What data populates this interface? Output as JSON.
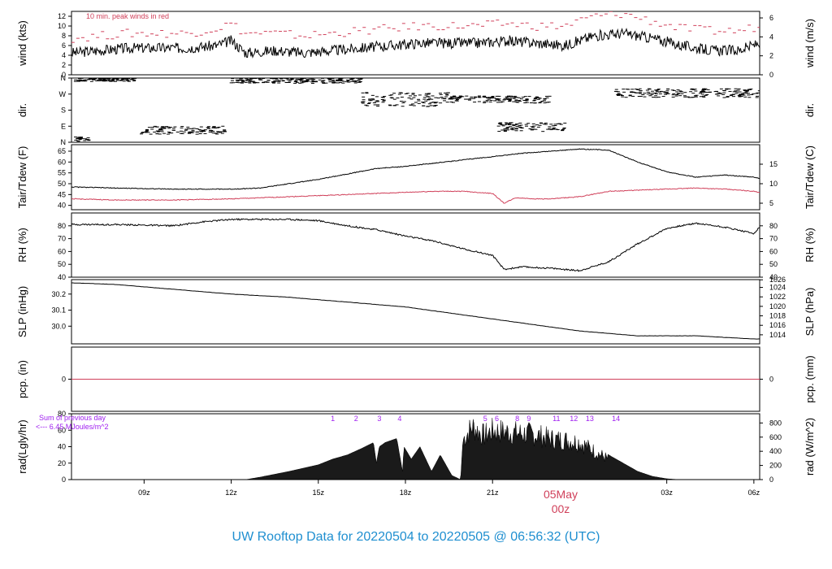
{
  "title": "UW Rooftop Data for 20220504  to  20220505 @ 06:56:32  (UTC)",
  "date_marker": {
    "label": "05May",
    "sub": "00z"
  },
  "time_axis": {
    "range_hours": [
      6.5,
      30.2
    ],
    "ticks": [
      {
        "h": 9,
        "label": "09z"
      },
      {
        "h": 12,
        "label": "12z"
      },
      {
        "h": 15,
        "label": "15z"
      },
      {
        "h": 18,
        "label": "18z"
      },
      {
        "h": 21,
        "label": "21z"
      },
      {
        "h": 27,
        "label": "03z"
      },
      {
        "h": 30,
        "label": "06z"
      }
    ]
  },
  "colors": {
    "trace": "#000000",
    "red": "#d0405a",
    "purple": "#a020f0",
    "title": "#1f8fd0"
  },
  "chart_data": [
    {
      "id": "wind",
      "type": "line",
      "ylabel": "wind (kts)",
      "ylabel_right": "wind (m/s)",
      "ylim": [
        0,
        13
      ],
      "left_ticks": [
        "0",
        "2",
        "4",
        "6",
        "8",
        "10",
        "12"
      ],
      "right_ticks": [
        {
          "v": 0,
          "label": "0"
        },
        {
          "v": 3.888,
          "label": "2"
        },
        {
          "v": 7.776,
          "label": "4"
        },
        {
          "v": 11.66,
          "label": "6"
        }
      ],
      "annotation": "10 min. peak winds in red",
      "series": [
        {
          "color": "black",
          "x": [
            6.5,
            7.5,
            8.5,
            9.5,
            10.5,
            11.5,
            12.0,
            12.5,
            13.5,
            14.5,
            15.5,
            16.5,
            17.5,
            18.5,
            19.5,
            20.5,
            21.5,
            22.5,
            23.5,
            24.5,
            25.5,
            26.5,
            27.5,
            28.5,
            29.5,
            30.2
          ],
          "y": [
            4.5,
            5.0,
            5.5,
            5.5,
            5.5,
            6.0,
            7.0,
            4.5,
            5.0,
            4.5,
            5.0,
            5.5,
            6.0,
            6.5,
            6.5,
            6.5,
            7.0,
            6.5,
            6.0,
            8.0,
            8.5,
            7.5,
            6.0,
            5.0,
            5.0,
            6.5
          ]
        },
        {
          "color": "red",
          "style": "dashes",
          "x": [
            6.5,
            7.5,
            8.5,
            9.5,
            10.5,
            11.5,
            12.0,
            12.5,
            13.5,
            14.5,
            15.5,
            16.5,
            17.5,
            18.5,
            19.5,
            20.5,
            21.5,
            22.5,
            23.5,
            24.5,
            25.5,
            26.5,
            27.5,
            28.5,
            29.5,
            30.2
          ],
          "y": [
            7.5,
            8.0,
            8.5,
            8.5,
            8.5,
            9.5,
            10.5,
            8.5,
            8.5,
            8.0,
            8.5,
            9.0,
            9.5,
            10.0,
            10.0,
            10.0,
            10.5,
            10.0,
            10.0,
            12.0,
            12.5,
            11.0,
            9.5,
            9.0,
            9.0,
            10.0
          ]
        }
      ]
    },
    {
      "id": "dir",
      "type": "scatter",
      "ylabel": "dir.",
      "ylabel_right": "dir.",
      "ylim": [
        0,
        360
      ],
      "left_ticks": [
        {
          "v": 0,
          "label": "N"
        },
        {
          "v": 90,
          "label": "E"
        },
        {
          "v": 180,
          "label": "S"
        },
        {
          "v": 270,
          "label": "W"
        },
        {
          "v": 360,
          "label": "N"
        }
      ],
      "clusters": [
        {
          "x": [
            6.6,
            8.7
          ],
          "y": [
            340,
            360
          ]
        },
        {
          "x": [
            6.6,
            7.2
          ],
          "y": [
            5,
            30
          ]
        },
        {
          "x": [
            8.9,
            11.8
          ],
          "y": [
            45,
            90
          ]
        },
        {
          "x": [
            12.0,
            16.5
          ],
          "y": [
            330,
            360
          ]
        },
        {
          "x": [
            16.5,
            19.5
          ],
          "y": [
            200,
            280
          ]
        },
        {
          "x": [
            19.5,
            23.0
          ],
          "y": [
            220,
            260
          ]
        },
        {
          "x": [
            21.2,
            23.5
          ],
          "y": [
            60,
            110
          ]
        },
        {
          "x": [
            25.2,
            30.2
          ],
          "y": [
            250,
            300
          ]
        }
      ]
    },
    {
      "id": "temp",
      "type": "line",
      "ylabel": "Tair/Tdew (F)",
      "ylabel_right": "Tair/Tdew (C)",
      "ylim": [
        38,
        68
      ],
      "left_ticks": [
        "40",
        "45",
        "50",
        "55",
        "60",
        "65"
      ],
      "right_ticks": [
        {
          "v": 41,
          "label": "5"
        },
        {
          "v": 50,
          "label": "10"
        },
        {
          "v": 59,
          "label": "15"
        }
      ],
      "series": [
        {
          "name": "Tair",
          "color": "black",
          "x": [
            6.5,
            8,
            10,
            12,
            13,
            14,
            15,
            16,
            17,
            18,
            19,
            20,
            21,
            22,
            23,
            24,
            25,
            26,
            27,
            28,
            29,
            30,
            30.2
          ],
          "y": [
            48.5,
            48.0,
            47.5,
            47.5,
            48.0,
            50.0,
            52.0,
            54.5,
            57.0,
            58.0,
            59.5,
            61.0,
            62.5,
            64.0,
            65.0,
            66.0,
            65.5,
            60.0,
            55.5,
            53.0,
            54.0,
            53.0,
            52.5
          ]
        },
        {
          "name": "Tdew",
          "color": "red",
          "x": [
            6.5,
            8,
            10,
            12,
            14,
            16,
            18,
            19,
            20,
            21,
            21.4,
            21.8,
            22.5,
            23,
            24,
            25,
            26,
            27,
            28,
            29,
            30,
            30.2
          ],
          "y": [
            43.0,
            42.5,
            42.5,
            43.0,
            44.0,
            45.0,
            46.0,
            46.5,
            46.5,
            45.5,
            41.0,
            43.5,
            43.0,
            43.0,
            44.0,
            46.5,
            47.0,
            47.5,
            48.0,
            47.5,
            46.5,
            46.0
          ]
        }
      ]
    },
    {
      "id": "rh",
      "type": "line",
      "ylabel": "RH (%)",
      "ylabel_right": "RH (%)",
      "ylim": [
        40,
        90
      ],
      "left_ticks": [
        "40",
        "50",
        "60",
        "70",
        "80"
      ],
      "right_ticks": [
        {
          "v": 40,
          "label": "40"
        },
        {
          "v": 50,
          "label": "50"
        },
        {
          "v": 60,
          "label": "60"
        },
        {
          "v": 70,
          "label": "70"
        },
        {
          "v": 80,
          "label": "80"
        }
      ],
      "series": [
        {
          "color": "black",
          "x": [
            6.5,
            8,
            10,
            11,
            12,
            13,
            14,
            15,
            16,
            17,
            18,
            19,
            20,
            21,
            21.4,
            22,
            23,
            24,
            25,
            26,
            27,
            28,
            29,
            30,
            30.2
          ],
          "y": [
            81,
            81,
            80,
            83,
            85,
            85,
            85,
            84,
            80,
            77,
            72,
            68,
            62,
            57,
            46,
            48,
            47,
            45,
            52,
            66,
            78,
            82,
            79,
            74,
            79
          ]
        }
      ]
    },
    {
      "id": "slp",
      "type": "line",
      "ylabel": "SLP (inHg)",
      "ylabel_right": "SLP (hPa)",
      "ylim": [
        29.89,
        30.29
      ],
      "left_ticks": [
        "30.0",
        "30.1",
        "30.2"
      ],
      "right_ticks": [
        {
          "v": 29.9463,
          "label": "1014"
        },
        {
          "v": 30.0054,
          "label": "1016"
        },
        {
          "v": 30.0644,
          "label": "1018"
        },
        {
          "v": 30.1235,
          "label": "1020"
        },
        {
          "v": 30.1826,
          "label": "1022"
        },
        {
          "v": 30.2416,
          "label": "1024"
        },
        {
          "v": 30.2888,
          "label": "1026"
        }
      ],
      "series": [
        {
          "color": "black",
          "x": [
            6.5,
            8,
            10,
            12,
            14,
            16,
            18,
            20,
            22,
            24,
            26,
            28,
            29,
            30,
            30.2
          ],
          "y": [
            30.27,
            30.26,
            30.23,
            30.2,
            30.18,
            30.15,
            30.12,
            30.07,
            30.02,
            29.97,
            29.94,
            29.94,
            29.93,
            29.92,
            29.92
          ]
        }
      ]
    },
    {
      "id": "pcp",
      "type": "line",
      "ylabel": "pcp. (in)",
      "ylabel_right": "pcp. (mm)",
      "ylim": [
        -1,
        1
      ],
      "left_ticks": [
        "0"
      ],
      "right_ticks": [
        {
          "v": 0,
          "label": "0"
        }
      ],
      "series": [
        {
          "color": "red",
          "x": [
            6.5,
            30.2
          ],
          "y": [
            0,
            0
          ]
        }
      ]
    },
    {
      "id": "rad",
      "type": "area",
      "ylabel": "rad(Lgly/hr)",
      "ylabel_right": "rad (W/m^2)",
      "ylim": [
        0,
        80
      ],
      "left_ticks": [
        "0",
        "20",
        "40",
        "60",
        "80"
      ],
      "right_ticks": [
        {
          "v": 0,
          "label": "0"
        },
        {
          "v": 17.2,
          "label": "200"
        },
        {
          "v": 34.4,
          "label": "400"
        },
        {
          "v": 51.6,
          "label": "600"
        },
        {
          "v": 68.8,
          "label": "800"
        }
      ],
      "note": [
        "Sum of previous day",
        "<--- 6.45 MJoules/m^2"
      ],
      "markers": [
        {
          "h": 15.5,
          "label": "1"
        },
        {
          "h": 16.3,
          "label": "2"
        },
        {
          "h": 17.1,
          "label": "3"
        },
        {
          "h": 17.8,
          "label": "4"
        },
        {
          "h": 20.75,
          "label": "5"
        },
        {
          "h": 21.15,
          "label": "6"
        },
        {
          "h": 21.85,
          "label": "8"
        },
        {
          "h": 22.25,
          "label": "9"
        },
        {
          "h": 23.2,
          "label": "11"
        },
        {
          "h": 23.8,
          "label": "12"
        },
        {
          "h": 24.35,
          "label": "13"
        },
        {
          "h": 25.25,
          "label": "14"
        }
      ],
      "series": [
        {
          "color": "black",
          "x": [
            12.5,
            13.0,
            14.0,
            15.0,
            15.5,
            16.0,
            16.5,
            16.9,
            17.0,
            17.1,
            17.3,
            17.7,
            17.9,
            17.95,
            18.2,
            18.5,
            18.9,
            19.2,
            19.6,
            19.9,
            20.0,
            20.3,
            20.7,
            21.0,
            21.5,
            22.0,
            22.5,
            23.0,
            23.5,
            24.0,
            24.5,
            25.0,
            25.5,
            26.0,
            26.5,
            27.0,
            27.4
          ],
          "y": [
            0,
            3,
            10,
            18,
            25,
            30,
            38,
            45,
            20,
            40,
            45,
            50,
            10,
            40,
            25,
            40,
            10,
            30,
            5,
            0,
            60,
            78,
            65,
            72,
            70,
            68,
            66,
            60,
            58,
            55,
            42,
            30,
            20,
            10,
            4,
            1,
            0
          ]
        }
      ]
    }
  ]
}
